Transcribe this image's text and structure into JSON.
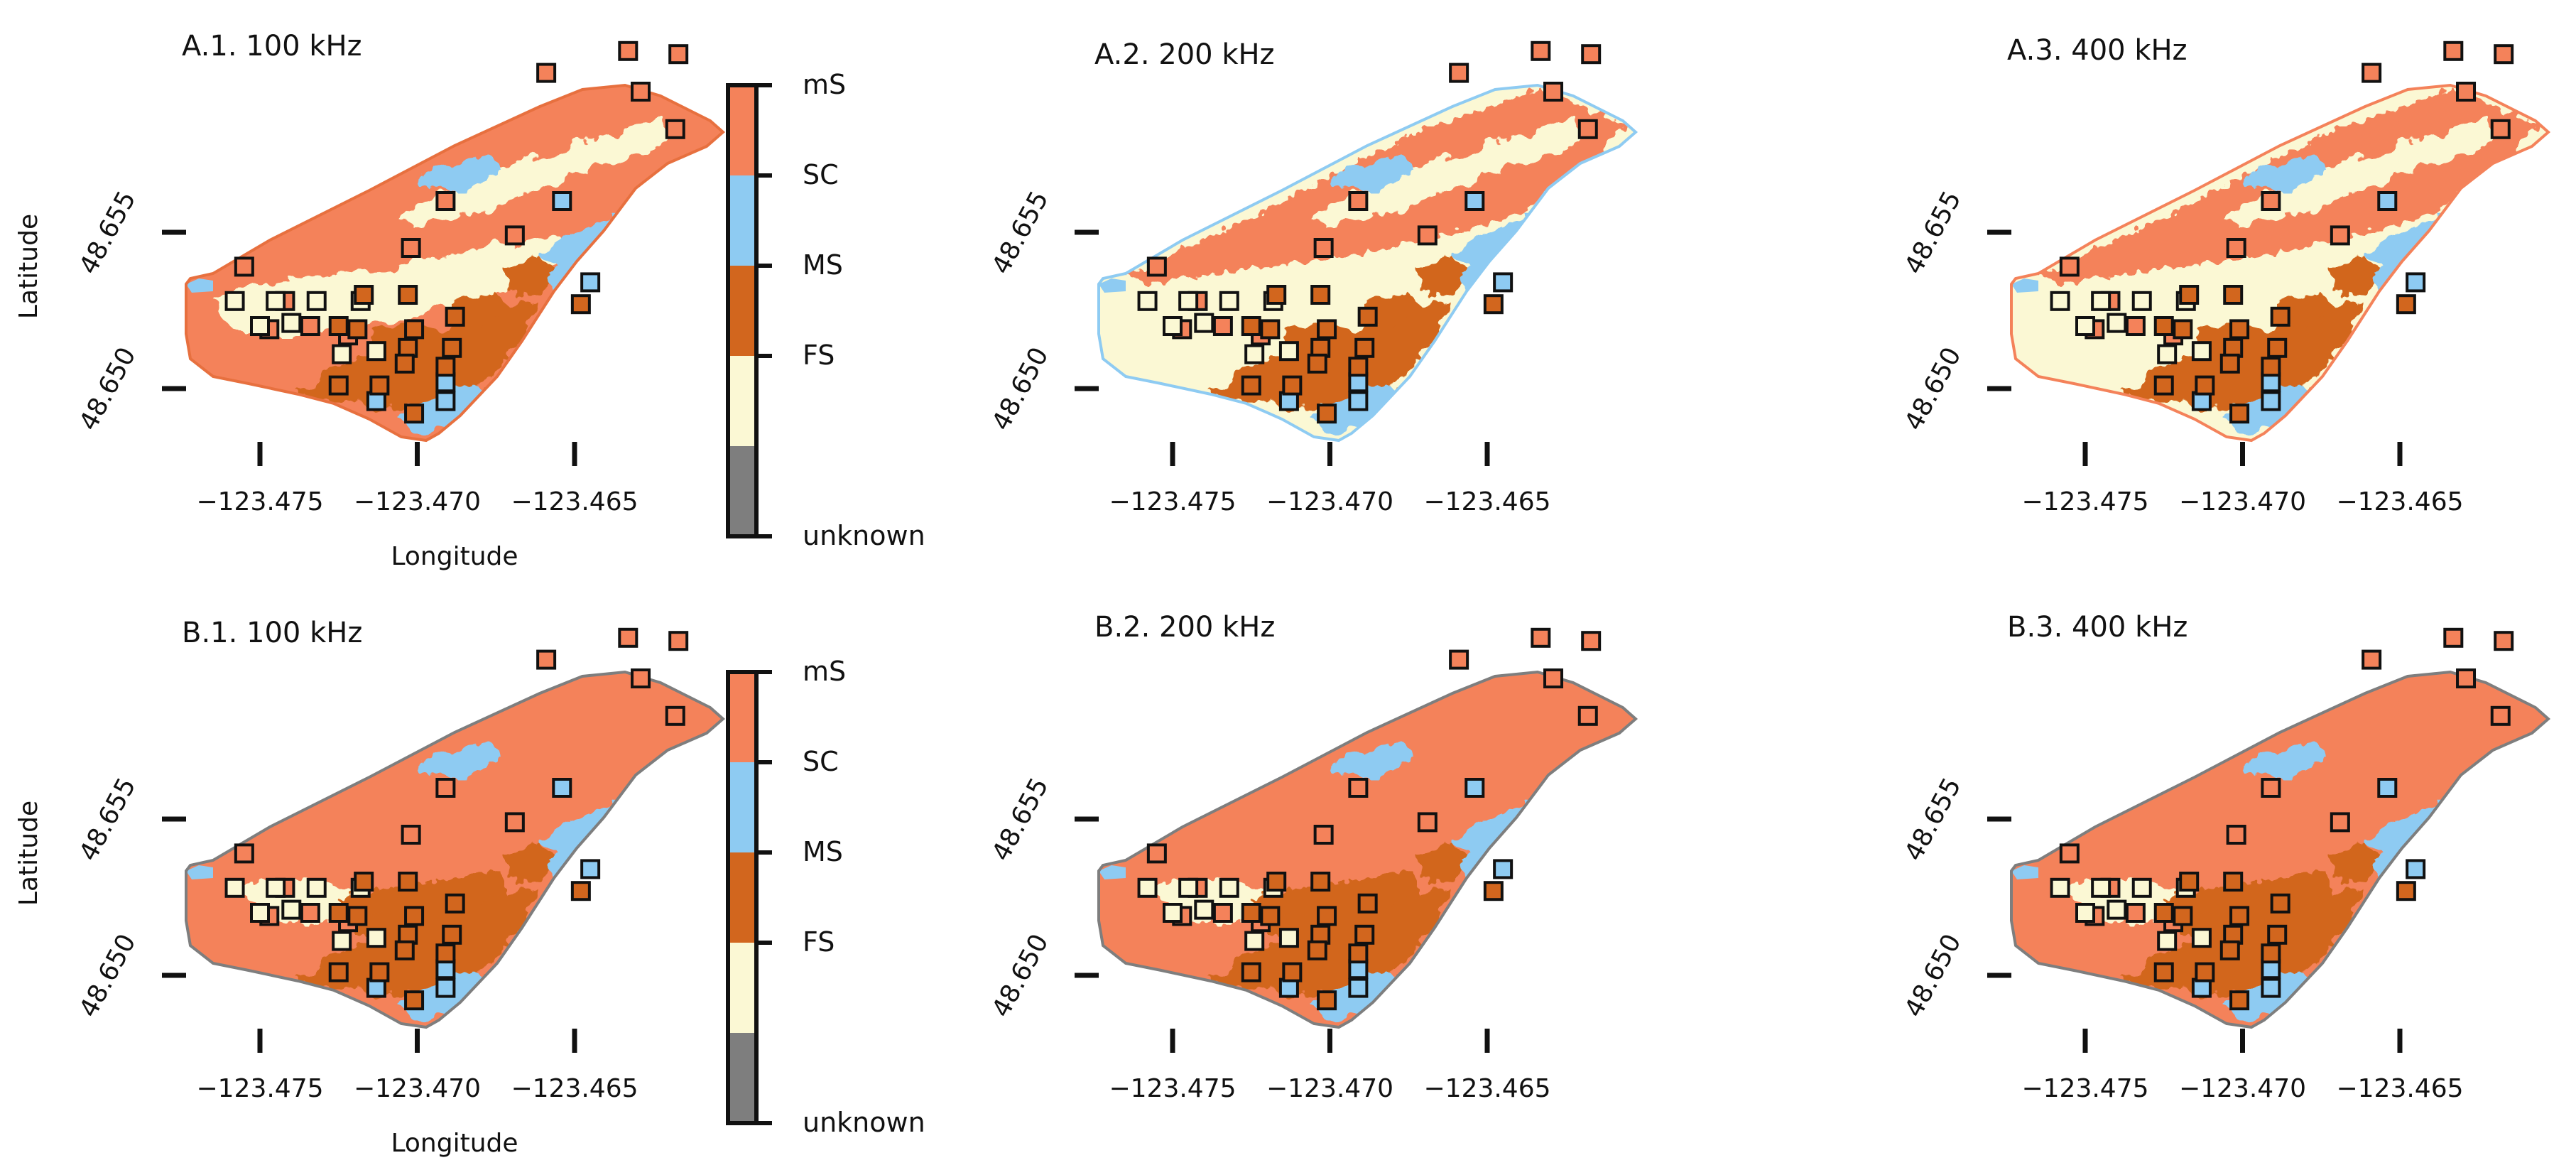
{
  "figure": {
    "panels": [
      {
        "id": "A1",
        "title": "A.1. 100 kHz",
        "frequency_khz": 100,
        "row": "A",
        "scheme": "A1"
      },
      {
        "id": "A2",
        "title": "A.2. 200 kHz",
        "frequency_khz": 200,
        "row": "A",
        "scheme": "A2"
      },
      {
        "id": "A3",
        "title": "A.3. 400 kHz",
        "frequency_khz": 400,
        "row": "A",
        "scheme": "A3"
      },
      {
        "id": "B1",
        "title": "B.1. 100 kHz",
        "frequency_khz": 100,
        "row": "B",
        "scheme": "B"
      },
      {
        "id": "B2",
        "title": "B.2. 200 kHz",
        "frequency_khz": 200,
        "row": "B",
        "scheme": "B"
      },
      {
        "id": "B3",
        "title": "B.3. 400 kHz",
        "frequency_khz": 400,
        "row": "B",
        "scheme": "B"
      }
    ],
    "axes": {
      "xlabel": "Longitude",
      "ylabel": "Latitude",
      "x_ticks": [
        -123.475,
        -123.47,
        -123.465
      ],
      "x_tick_labels": [
        "−123.475",
        "−123.470",
        "−123.465"
      ],
      "y_ticks": [
        48.65,
        48.655
      ],
      "y_tick_labels": [
        "48.650",
        "48.655"
      ]
    },
    "legend": {
      "classes": [
        {
          "label": "mS",
          "color": "#f4825a"
        },
        {
          "label": "SC",
          "color": "#8ecbf2"
        },
        {
          "label": "MS",
          "color": "#d2661e"
        },
        {
          "label": "FS",
          "color": "#fbf8d4"
        },
        {
          "label": "unknown",
          "color": "#7e7e7e"
        }
      ]
    },
    "ground_truth_samples": [
      {
        "lon": -123.4713,
        "lat": 48.6496,
        "cls": "SC"
      },
      {
        "lon": -123.4691,
        "lat": 48.6496,
        "cls": "SC"
      },
      {
        "lon": -123.4691,
        "lat": 48.6502,
        "cls": "SC"
      },
      {
        "lon": -123.4654,
        "lat": 48.656,
        "cls": "SC"
      },
      {
        "lon": -123.4645,
        "lat": 48.6534,
        "cls": "SC"
      },
      {
        "lon": -123.4629,
        "lat": 48.6595,
        "cls": "mS"
      },
      {
        "lon": -123.4633,
        "lat": 48.6608,
        "cls": "mS"
      },
      {
        "lon": -123.4617,
        "lat": 48.6607,
        "cls": "mS"
      },
      {
        "lon": -123.4618,
        "lat": 48.6583,
        "cls": "mS"
      },
      {
        "lon": -123.4659,
        "lat": 48.6601,
        "cls": "mS"
      },
      {
        "lon": -123.4669,
        "lat": 48.6549,
        "cls": "mS"
      },
      {
        "lon": -123.4702,
        "lat": 48.6545,
        "cls": "mS"
      },
      {
        "lon": -123.4755,
        "lat": 48.6539,
        "cls": "mS"
      },
      {
        "lon": -123.4742,
        "lat": 48.6528,
        "cls": "mS"
      },
      {
        "lon": -123.4722,
        "lat": 48.6517,
        "cls": "mS"
      },
      {
        "lon": -123.4691,
        "lat": 48.656,
        "cls": "mS"
      },
      {
        "lon": -123.4734,
        "lat": 48.652,
        "cls": "mS"
      },
      {
        "lon": -123.4747,
        "lat": 48.6519,
        "cls": "mS"
      },
      {
        "lon": -123.4758,
        "lat": 48.6528,
        "cls": "FS"
      },
      {
        "lon": -123.475,
        "lat": 48.652,
        "cls": "FS"
      },
      {
        "lon": -123.4732,
        "lat": 48.6528,
        "cls": "FS"
      },
      {
        "lon": -123.4724,
        "lat": 48.6511,
        "cls": "FS"
      },
      {
        "lon": -123.4713,
        "lat": 48.6512,
        "cls": "FS"
      },
      {
        "lon": -123.4718,
        "lat": 48.6528,
        "cls": "FS"
      },
      {
        "lon": -123.474,
        "lat": 48.6521,
        "cls": "FS"
      },
      {
        "lon": -123.4745,
        "lat": 48.6528,
        "cls": "FS"
      },
      {
        "lon": -123.4703,
        "lat": 48.653,
        "cls": "MS"
      },
      {
        "lon": -123.4688,
        "lat": 48.6523,
        "cls": "MS"
      },
      {
        "lon": -123.4701,
        "lat": 48.6519,
        "cls": "MS"
      },
      {
        "lon": -123.4703,
        "lat": 48.6513,
        "cls": "MS"
      },
      {
        "lon": -123.4689,
        "lat": 48.6513,
        "cls": "MS"
      },
      {
        "lon": -123.4719,
        "lat": 48.6519,
        "cls": "MS"
      },
      {
        "lon": -123.4725,
        "lat": 48.6501,
        "cls": "MS"
      },
      {
        "lon": -123.4712,
        "lat": 48.6501,
        "cls": "MS"
      },
      {
        "lon": -123.4704,
        "lat": 48.6508,
        "cls": "MS"
      },
      {
        "lon": -123.4717,
        "lat": 48.653,
        "cls": "MS"
      },
      {
        "lon": -123.4725,
        "lat": 48.652,
        "cls": "MS"
      },
      {
        "lon": -123.4701,
        "lat": 48.6492,
        "cls": "MS"
      },
      {
        "lon": -123.4691,
        "lat": 48.6507,
        "cls": "MS"
      },
      {
        "lon": -123.4648,
        "lat": 48.6527,
        "cls": "MS"
      }
    ]
  }
}
